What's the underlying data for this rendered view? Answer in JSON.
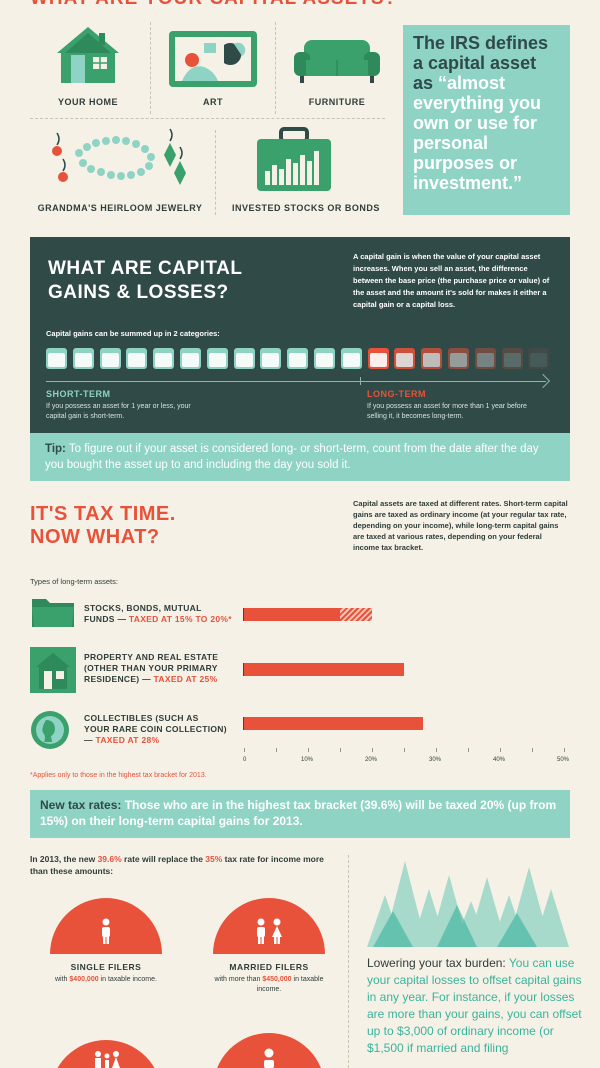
{
  "section1": {
    "title": "WHAT ARE YOUR CAPITAL ASSETS?",
    "assets": [
      "YOUR HOME",
      "ART",
      "FURNITURE",
      "GRANDMA'S HEIRLOOM JEWELRY",
      "INVESTED STOCKS OR BONDS"
    ],
    "irs_lead": "The IRS defines a capital asset as ",
    "irs_quote": "“almost everything you own or use for personal purposes or investment.”"
  },
  "section2": {
    "title_line1": "WHAT ARE CAPITAL",
    "title_line2": "GAINS & LOSSES?",
    "definition": "A capital gain is when the value of your capital asset increases. When you sell an asset, the difference between the base price (the purchase price or value) of the asset and the amount it's sold for makes it either a capital gain or a capital loss.",
    "categories_label": "Capital gains can be summed up in 2 categories:",
    "short_term_title": "SHORT-TERM",
    "short_term_desc": "If you possess an asset for 1 year or less, your capital gain is short-term.",
    "long_term_title": "LONG-TERM",
    "long_term_desc": "If you possess an asset for more than 1 year before selling it, it becomes long-term.",
    "tip_label": "Tip:",
    "tip_text": " To figure out if your asset is considered long- or short-term, count from the date after the day you bought the asset up to and including the day you sold it."
  },
  "section3": {
    "title_line1": "IT'S TAX TIME.",
    "title_line2": "NOW WHAT?",
    "description": "Capital assets are taxed at different rates. Short-term capital gains are taxed as ordinary income (at your regular tax rate, depending on your income), while long-term capital gains are taxed at various rates, depending on your federal income tax bracket.",
    "types_label": "Types of long-term assets:",
    "asset_rows": [
      {
        "name_l1": "STOCKS, BONDS, MUTUAL",
        "name_l2": "FUNDS — ",
        "rate": "TAXED AT 15% TO 20%*"
      },
      {
        "name_l1": "PROPERTY AND REAL ESTATE",
        "name_l2": "(OTHER THAN YOUR PRIMARY",
        "name_l3": "RESIDENCE) — ",
        "rate": "TAXED AT 25%"
      },
      {
        "name_l1": "COLLECTIBLES (SUCH AS",
        "name_l2": "YOUR RARE COIN COLLECTION)",
        "name_l3": "— ",
        "rate": "TAXED AT 28%"
      }
    ],
    "footnote": "*Applies only to those in the highest tax bracket for 2013.",
    "new_rates_label": "New tax rates:",
    "new_rates_text": " Those who are in the highest tax bracket (39.6%) will be taxed 20% (up from 15%) on their long-term capital gains for 2013."
  },
  "chart_data": {
    "type": "bar",
    "orientation": "horizontal",
    "categories": [
      "Stocks, bonds, mutual funds",
      "Property and real estate",
      "Collectibles"
    ],
    "values": [
      15,
      25,
      28
    ],
    "range_high": [
      null,
      null,
      null
    ],
    "stocks_max": 20,
    "xticks": [
      "0",
      "10%",
      "20%",
      "30%",
      "40%",
      "50%"
    ],
    "xlim": [
      0,
      50
    ]
  },
  "section4": {
    "intro_a": "In 2013, the new ",
    "intro_rate_new": "39.6%",
    "intro_b": " rate will replace the ",
    "intro_rate_old": "35%",
    "intro_c": " tax rate for income more than these amounts:",
    "single_title": "SINGLE FILERS",
    "single_a": "with ",
    "single_amount": "$400,000",
    "single_b": " in taxable income.",
    "married_title": "MARRIED FILERS",
    "married_a": "with more than ",
    "married_amount": "$450,000",
    "married_b": " in taxable income.",
    "burden_lead": "Lowering your tax burden:",
    "burden_text": " You can use your capital losses to offset capital gains in any year. For instance, if your losses are more than your gains, you can offset up to $3,000 of ordinary income (or $1,500 if married and filing"
  },
  "colors": {
    "accent": "#e8523a",
    "teal": "#8fd3c4",
    "dark": "#2f4a47",
    "green": "#3aa06c",
    "background": "#f5f1e6"
  }
}
